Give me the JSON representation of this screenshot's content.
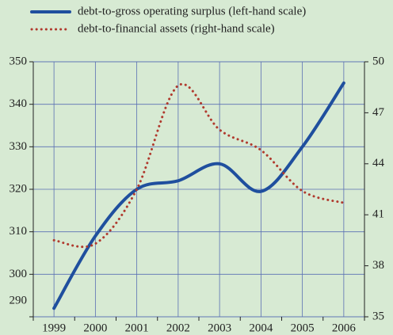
{
  "chart_data": {
    "type": "line",
    "categories": [
      "1999",
      "2000",
      "2001",
      "2002",
      "2003",
      "2004",
      "2005",
      "2006"
    ],
    "series": [
      {
        "name": "debt-to-gross operating surplus (left-hand scale)",
        "color": "#1f4f9e",
        "values": [
          292,
          309,
          320,
          322,
          326,
          319.5,
          330,
          345
        ]
      },
      {
        "name": "debt-to-financial assets (right-hand scale)",
        "color": "#b03a2e",
        "axis": "y2",
        "values": [
          39.5,
          39.3,
          42.5,
          48.6,
          46,
          44.8,
          42.4,
          41.7
        ]
      }
    ],
    "ylim": [
      290,
      350
    ],
    "yticks": [
      290,
      300,
      310,
      320,
      330,
      340,
      350
    ],
    "y2lim": [
      35,
      50
    ],
    "y2ticks": [
      35,
      38,
      41,
      44,
      47,
      50
    ],
    "grid": true
  }
}
